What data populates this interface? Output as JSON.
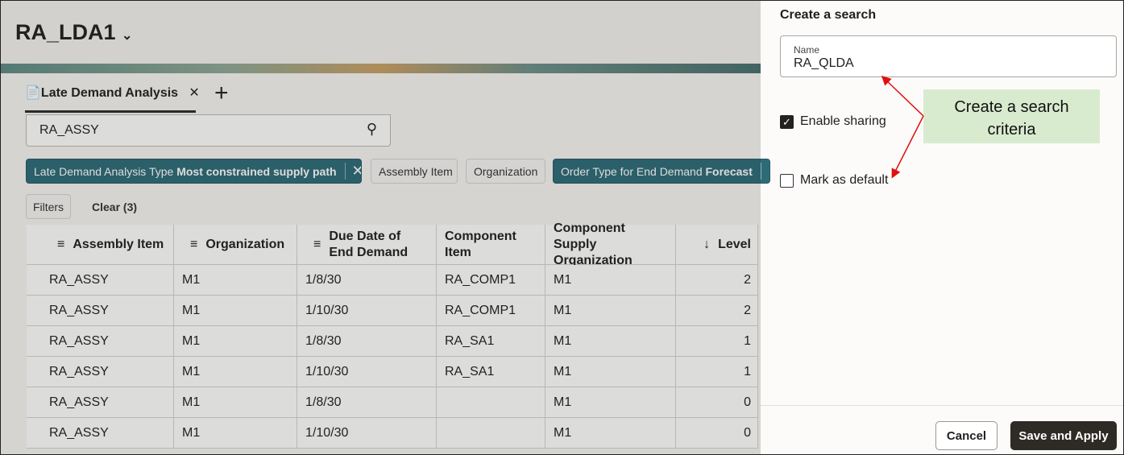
{
  "header": {
    "title": "RA_LDA1"
  },
  "tab": {
    "label": "Late Demand Analysis"
  },
  "search": {
    "value": "RA_ASSY"
  },
  "chips": [
    {
      "label": "Late Demand Analysis Type",
      "value": "Most constrained supply path"
    },
    {
      "label": "Assembly Item"
    },
    {
      "label": "Organization"
    },
    {
      "label": "Order Type for End Demand",
      "value": "Forecast"
    }
  ],
  "filters": {
    "button": "Filters",
    "clear": "Clear (3)"
  },
  "table": {
    "columns": [
      "Assembly Item",
      "Organization",
      "Due Date of End Demand",
      "Component Item",
      "Component Supply Organization",
      "Level"
    ],
    "rows": [
      [
        "RA_ASSY",
        "M1",
        "1/8/30",
        "RA_COMP1",
        "M1",
        2
      ],
      [
        "RA_ASSY",
        "M1",
        "1/10/30",
        "RA_COMP1",
        "M1",
        2
      ],
      [
        "RA_ASSY",
        "M1",
        "1/8/30",
        "RA_SA1",
        "M1",
        1
      ],
      [
        "RA_ASSY",
        "M1",
        "1/10/30",
        "RA_SA1",
        "M1",
        1
      ],
      [
        "RA_ASSY",
        "M1",
        "1/8/30",
        null,
        "M1",
        0
      ],
      [
        "RA_ASSY",
        "M1",
        "1/10/30",
        null,
        "M1",
        0
      ]
    ]
  },
  "panel": {
    "title": "Create a search",
    "name_label": "Name",
    "name_value": "RA_QLDA",
    "enable_sharing": "Enable sharing",
    "mark_default": "Mark as default",
    "cancel": "Cancel",
    "save": "Save and Apply"
  },
  "callout": {
    "text": "Create a search criteria"
  }
}
